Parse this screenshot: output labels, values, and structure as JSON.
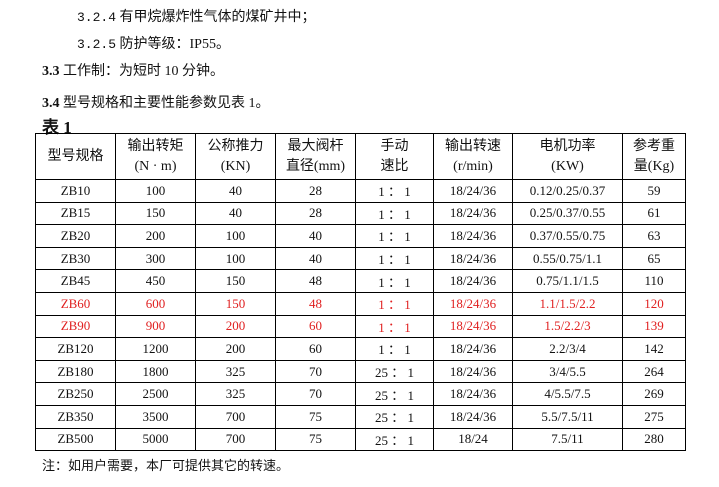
{
  "lines": {
    "l1_num": "3.2.4",
    "l1_text": "有甲烷爆炸性气体的煤矿井中；",
    "l2_num": "3.2.5",
    "l2_text": "防护等级：IP55。",
    "l3_num": "3.3",
    "l3_text": " 工作制：为短时 10 分钟。",
    "l4_num": "3.4",
    "l4_text": " 型号规格和主要性能参数见表 1。",
    "table_title": "表 1"
  },
  "table": {
    "headers": [
      [
        "型号规格",
        ""
      ],
      [
        "输出转矩",
        "(N · m)"
      ],
      [
        "公称推力",
        "(KN)"
      ],
      [
        "最大阀杆",
        "直径(mm)"
      ],
      [
        "手动",
        "速比"
      ],
      [
        "输出转速",
        "(r/min)"
      ],
      [
        "电机功率",
        "(KW)"
      ],
      [
        "参考重",
        "量(Kg)"
      ]
    ],
    "rows": [
      {
        "cells": [
          "ZB10",
          "100",
          "40",
          "28",
          "1 ： 1",
          "18/24/36",
          "0.12/0.25/0.37",
          "59"
        ],
        "highlight": false
      },
      {
        "cells": [
          "ZB15",
          "150",
          "40",
          "28",
          "1 ： 1",
          "18/24/36",
          "0.25/0.37/0.55",
          "61"
        ],
        "highlight": false
      },
      {
        "cells": [
          "ZB20",
          "200",
          "100",
          "40",
          "1 ： 1",
          "18/24/36",
          "0.37/0.55/0.75",
          "63"
        ],
        "highlight": false
      },
      {
        "cells": [
          "ZB30",
          "300",
          "100",
          "40",
          "1 ： 1",
          "18/24/36",
          "0.55/0.75/1.1",
          "65"
        ],
        "highlight": false
      },
      {
        "cells": [
          "ZB45",
          "450",
          "150",
          "48",
          "1 ： 1",
          "18/24/36",
          "0.75/1.1/1.5",
          "110"
        ],
        "highlight": false
      },
      {
        "cells": [
          "ZB60",
          "600",
          "150",
          "48",
          "1 ： 1",
          "18/24/36",
          "1.1/1.5/2.2",
          "120"
        ],
        "highlight": true
      },
      {
        "cells": [
          "ZB90",
          "900",
          "200",
          "60",
          "1 ： 1",
          "18/24/36",
          "1.5/2.2/3",
          "139"
        ],
        "highlight": true
      },
      {
        "cells": [
          "ZB120",
          "1200",
          "200",
          "60",
          "1 ： 1",
          "18/24/36",
          "2.2/3/4",
          "142"
        ],
        "highlight": false
      },
      {
        "cells": [
          "ZB180",
          "1800",
          "325",
          "70",
          "25 ： 1",
          "18/24/36",
          "3/4/5.5",
          "264"
        ],
        "highlight": false
      },
      {
        "cells": [
          "ZB250",
          "2500",
          "325",
          "70",
          "25 ： 1",
          "18/24/36",
          "4/5.5/7.5",
          "269"
        ],
        "highlight": false
      },
      {
        "cells": [
          "ZB350",
          "3500",
          "700",
          "75",
          "25 ： 1",
          "18/24/36",
          "5.5/7.5/11",
          "275"
        ],
        "highlight": false
      },
      {
        "cells": [
          "ZB500",
          "5000",
          "700",
          "75",
          "25 ： 1",
          "18/24",
          "7.5/11",
          "280"
        ],
        "highlight": false
      }
    ],
    "highlight_color": "#e02020"
  },
  "note": "注：如用户需要，本厂可提供其它的转速。"
}
